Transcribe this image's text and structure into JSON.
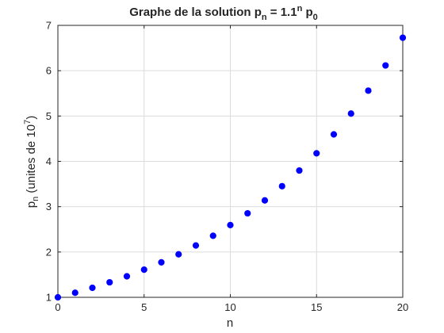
{
  "chart_data": {
    "type": "scatter",
    "title": {
      "base": "Graphe de la solution p",
      "sub1": "n",
      "mid": " = 1.1",
      "sup": "n",
      "tail": " p",
      "sub2": "0"
    },
    "xlabel": "n",
    "ylabel": {
      "base": "p",
      "sub": "n",
      "mid": " (unites de 10",
      "sup": "7",
      "tail": ")"
    },
    "xlim": [
      0,
      20
    ],
    "ylim": [
      1,
      7
    ],
    "xticks": [
      0,
      5,
      10,
      15,
      20
    ],
    "yticks": [
      1,
      2,
      3,
      4,
      5,
      6,
      7
    ],
    "grid": true,
    "marker_color": "#0000ff",
    "x": [
      0,
      1,
      2,
      3,
      4,
      5,
      6,
      7,
      8,
      9,
      10,
      11,
      12,
      13,
      14,
      15,
      16,
      17,
      18,
      19,
      20
    ],
    "y": [
      1.0,
      1.1,
      1.21,
      1.331,
      1.4641,
      1.6105,
      1.7716,
      1.9487,
      2.1436,
      2.3579,
      2.5937,
      2.8531,
      3.1384,
      3.4523,
      3.7975,
      4.1772,
      4.595,
      5.0545,
      5.5599,
      6.1159,
      6.7275
    ]
  }
}
